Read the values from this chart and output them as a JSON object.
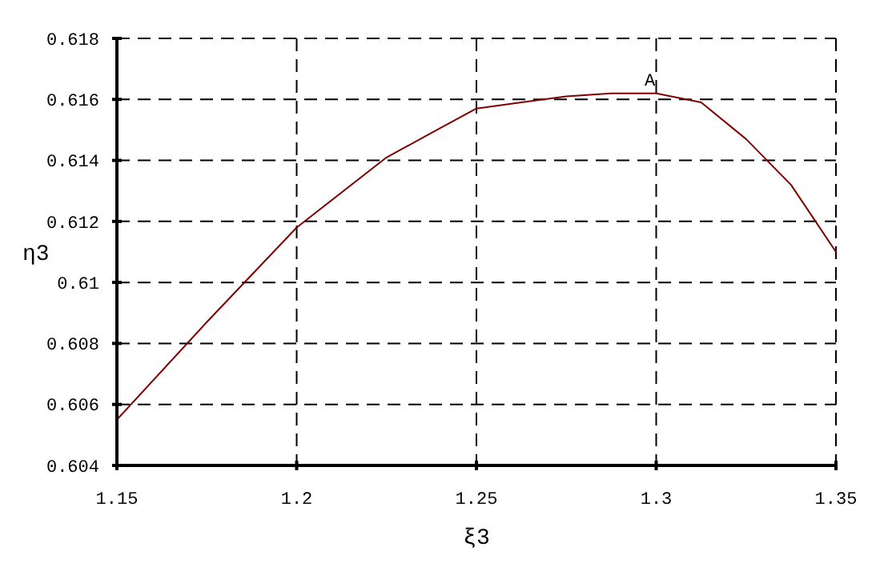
{
  "chart_data": {
    "type": "line",
    "xlabel": "ξ3",
    "ylabel": "η3",
    "x": [
      1.15,
      1.175,
      1.2,
      1.225,
      1.2375,
      1.25,
      1.2625,
      1.275,
      1.2875,
      1.3,
      1.3125,
      1.325,
      1.3375,
      1.35
    ],
    "series": [
      {
        "color": "#800000",
        "values": [
          0.6055,
          0.6087,
          0.6118,
          0.6141,
          0.6149,
          0.6157,
          0.6159,
          0.6161,
          0.6162,
          0.6162,
          0.6159,
          0.6147,
          0.6132,
          0.611
        ]
      }
    ],
    "annotations": [
      {
        "text": "A",
        "x": 1.3,
        "y": 0.6162
      }
    ],
    "xlim": [
      1.15,
      1.35
    ],
    "xticks": [
      1.15,
      1.2,
      1.25,
      1.3,
      1.35
    ],
    "ylim": [
      0.604,
      0.618
    ],
    "yticks": [
      0.604,
      0.606,
      0.608,
      0.61,
      0.612,
      0.614,
      0.616,
      0.618
    ],
    "grid": true,
    "line_style": "solid",
    "marker": "none"
  }
}
